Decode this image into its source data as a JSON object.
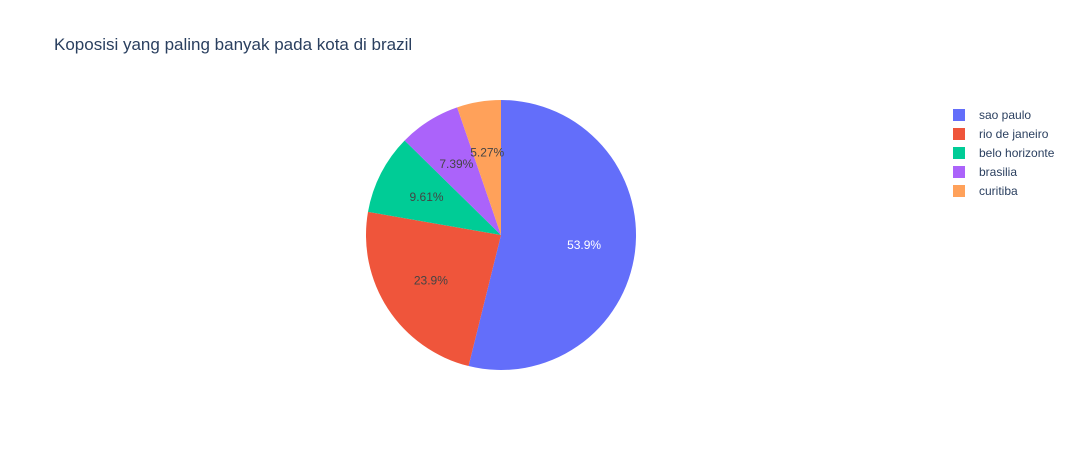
{
  "chart_data": {
    "type": "pie",
    "title": "Koposisi yang paling banyak pada kota di brazil",
    "categories": [
      "sao paulo",
      "rio de janeiro",
      "belo horizonte",
      "brasilia",
      "curitiba"
    ],
    "values": [
      53.9,
      23.9,
      9.61,
      7.39,
      5.27
    ],
    "labels": [
      "53.9%",
      "23.9%",
      "9.61%",
      "7.39%",
      "5.27%"
    ],
    "colors": [
      "#636efa",
      "#EF553B",
      "#00cc96",
      "#ab63fa",
      "#FFA15A"
    ],
    "text_colors": [
      "#ffffff",
      "#444444",
      "#444444",
      "#444444",
      "#444444"
    ],
    "legend_position": "top-right",
    "direction": "clockwise",
    "start": "top"
  }
}
